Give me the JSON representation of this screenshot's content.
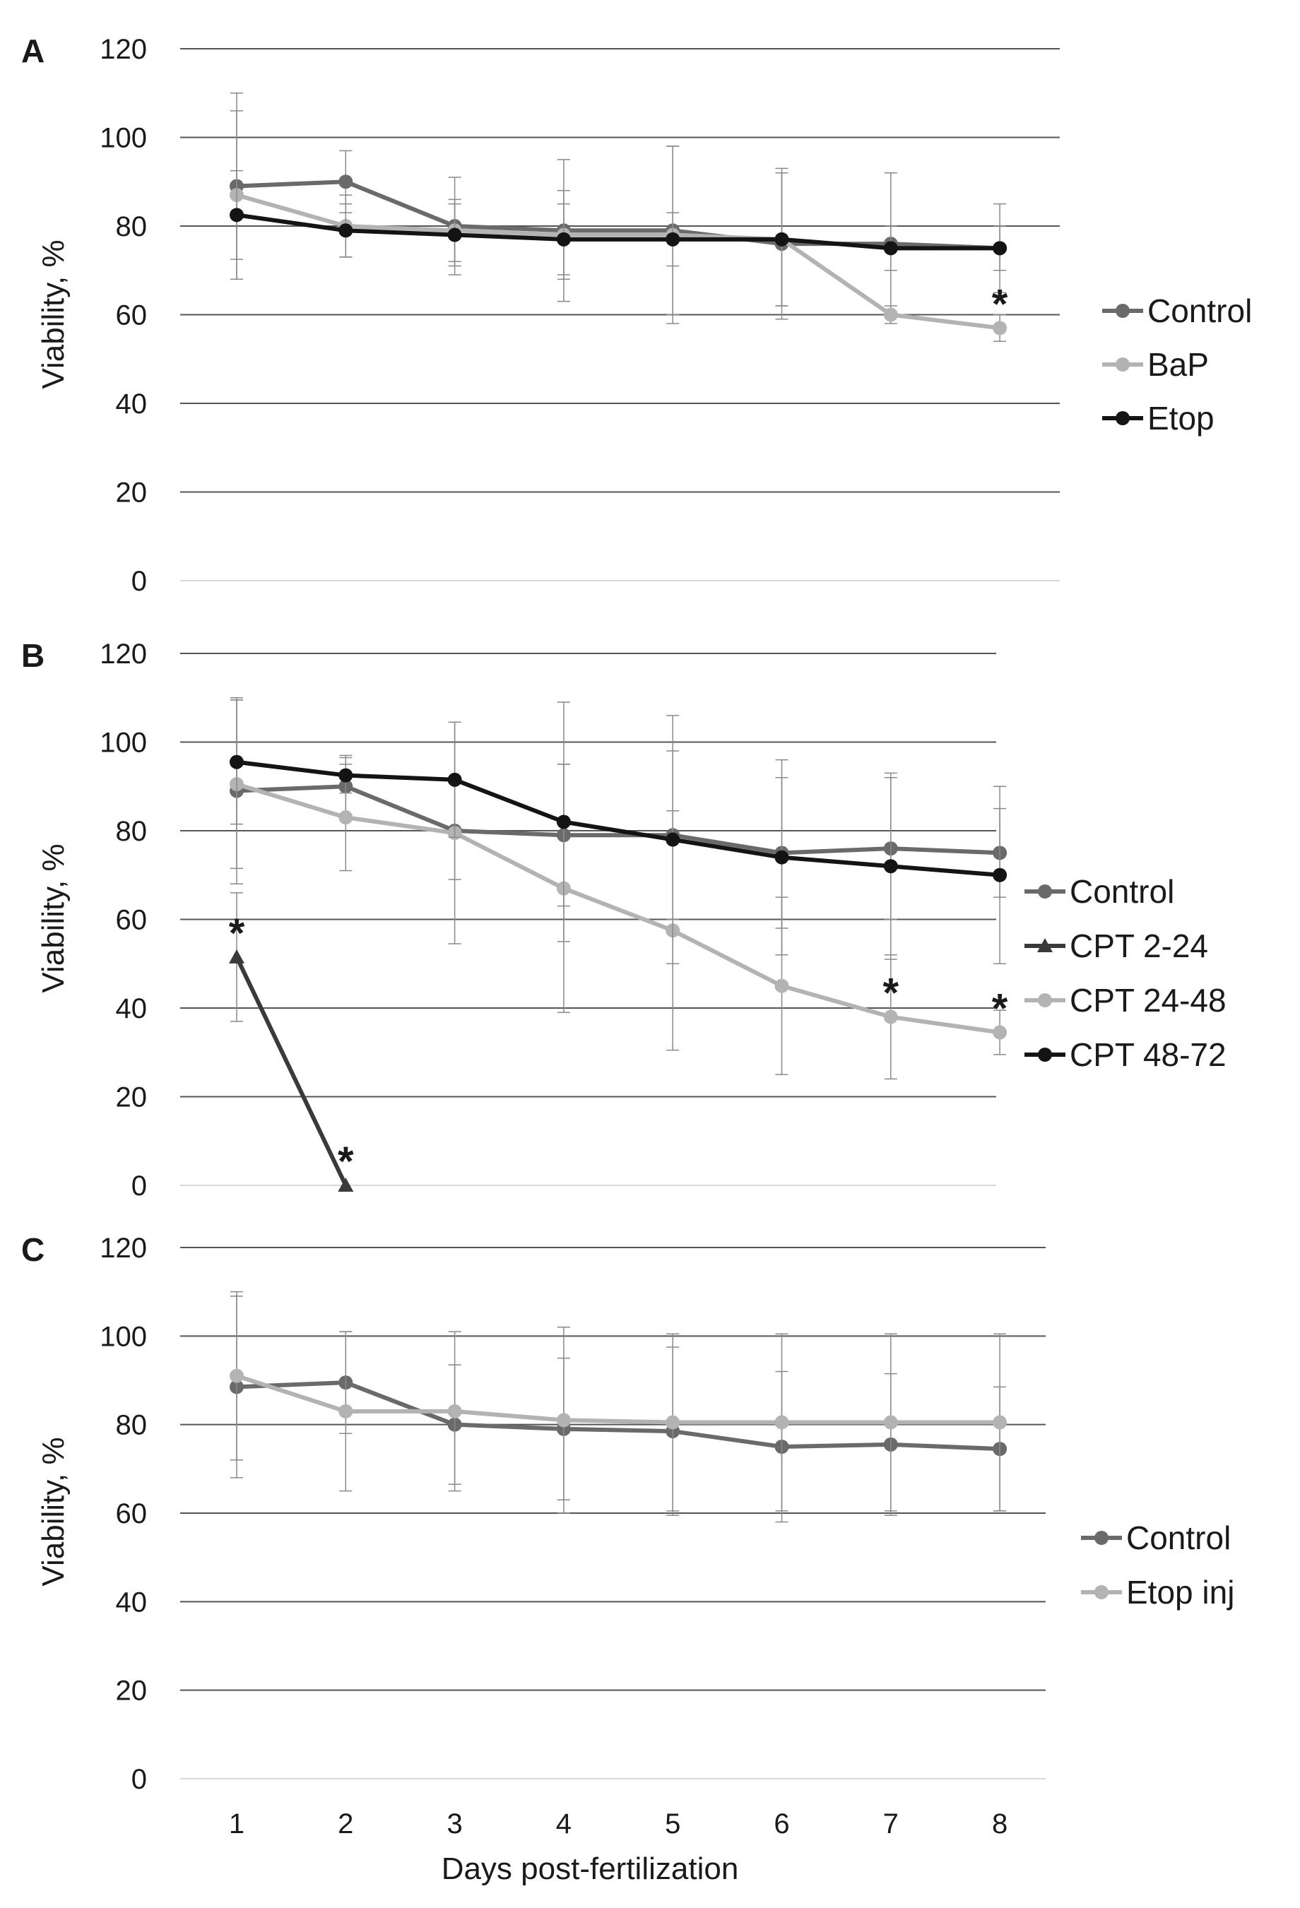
{
  "figure": {
    "xlabel": "Days post-fertilization",
    "x_ticks": [
      "1",
      "2",
      "3",
      "4",
      "5",
      "6",
      "7",
      "8"
    ]
  },
  "chart_data": [
    {
      "panel": "A",
      "type": "line",
      "ylabel": "Viability, %",
      "ylim": [
        0,
        120
      ],
      "y_ticks": [
        "0",
        "20",
        "40",
        "60",
        "80",
        "100",
        "120"
      ],
      "x": [
        1,
        2,
        3,
        4,
        5,
        6,
        7,
        8
      ],
      "series": [
        {
          "name": "Control",
          "color": "#6a6a6a",
          "marker": "circle",
          "values": [
            89,
            90,
            80,
            79,
            79,
            76,
            76,
            75
          ],
          "errors": [
            21,
            7,
            11,
            16,
            19,
            17,
            16,
            10
          ]
        },
        {
          "name": "BaP",
          "color": "#b3b3b3",
          "marker": "circle",
          "values": [
            87,
            80,
            79,
            78,
            78,
            77,
            60,
            57
          ],
          "errors": [
            19,
            7,
            7,
            10,
            20,
            15,
            2,
            3
          ]
        },
        {
          "name": "Etop",
          "color": "#141414",
          "marker": "circle",
          "values": [
            82.5,
            79,
            78,
            77,
            77,
            77,
            75,
            75
          ],
          "errors": [
            10,
            6,
            7,
            8,
            6,
            15,
            5,
            5
          ]
        }
      ],
      "annotations": [
        {
          "x": 8,
          "y": 57,
          "label": "*"
        }
      ]
    },
    {
      "panel": "B",
      "type": "line",
      "ylabel": "Viability, %",
      "ylim": [
        0,
        120
      ],
      "y_ticks": [
        "0",
        "20",
        "40",
        "60",
        "80",
        "100",
        "120"
      ],
      "x": [
        1,
        2,
        3,
        4,
        5,
        6,
        7,
        8
      ],
      "series": [
        {
          "name": "Control",
          "color": "#6a6a6a",
          "marker": "circle",
          "x": [
            1,
            2,
            3,
            4,
            5,
            6,
            7,
            8
          ],
          "values": [
            89,
            90,
            80,
            79,
            79,
            75,
            76,
            75
          ],
          "errors": [
            21,
            7,
            11,
            16,
            19,
            17,
            16,
            10
          ]
        },
        {
          "name": "CPT 2-24",
          "color": "#3a3a3a",
          "marker": "triangle",
          "x": [
            1,
            2
          ],
          "values": [
            51.5,
            0
          ],
          "errors": [
            14.5,
            0
          ]
        },
        {
          "name": "CPT 24-48",
          "color": "#b3b3b3",
          "marker": "circle",
          "x": [
            1,
            2,
            3,
            4,
            5,
            6,
            7,
            8
          ],
          "values": [
            90.5,
            83,
            79.5,
            67,
            57.5,
            45,
            38,
            34.5
          ],
          "errors": [
            19,
            12,
            25,
            28,
            27,
            20,
            14,
            5
          ]
        },
        {
          "name": "CPT 48-72",
          "color": "#141414",
          "marker": "circle",
          "x": [
            1,
            2,
            3,
            4,
            5,
            6,
            7,
            8
          ],
          "values": [
            95.5,
            92.5,
            91.5,
            82,
            78,
            74,
            72,
            70
          ],
          "errors": [
            14,
            4,
            13,
            27,
            28,
            22,
            21,
            20
          ]
        }
      ],
      "annotations": [
        {
          "x": 1,
          "y": 51.5,
          "label": "*"
        },
        {
          "x": 2,
          "y": 0,
          "label": "*"
        },
        {
          "x": 7,
          "y": 38,
          "label": "*"
        },
        {
          "x": 8,
          "y": 34.5,
          "label": "*"
        }
      ]
    },
    {
      "panel": "C",
      "type": "line",
      "ylabel": "Viability, %",
      "ylim": [
        0,
        120
      ],
      "y_ticks": [
        "0",
        "20",
        "40",
        "60",
        "80",
        "100",
        "120"
      ],
      "x": [
        1,
        2,
        3,
        4,
        5,
        6,
        7,
        8
      ],
      "series": [
        {
          "name": "Control",
          "color": "#6a6a6a",
          "marker": "circle",
          "values": [
            88.5,
            89.5,
            80,
            79,
            78.5,
            75,
            75.5,
            74.5
          ],
          "errors": [
            20.5,
            11.5,
            13.5,
            16,
            19,
            17,
            16,
            14
          ]
        },
        {
          "name": "Etop inj",
          "color": "#b3b3b3",
          "marker": "circle",
          "values": [
            91,
            83,
            83,
            81,
            80.5,
            80.5,
            80.5,
            80.5
          ],
          "errors": [
            19,
            18,
            18,
            21,
            20,
            20,
            20,
            20
          ]
        }
      ],
      "annotations": []
    }
  ]
}
